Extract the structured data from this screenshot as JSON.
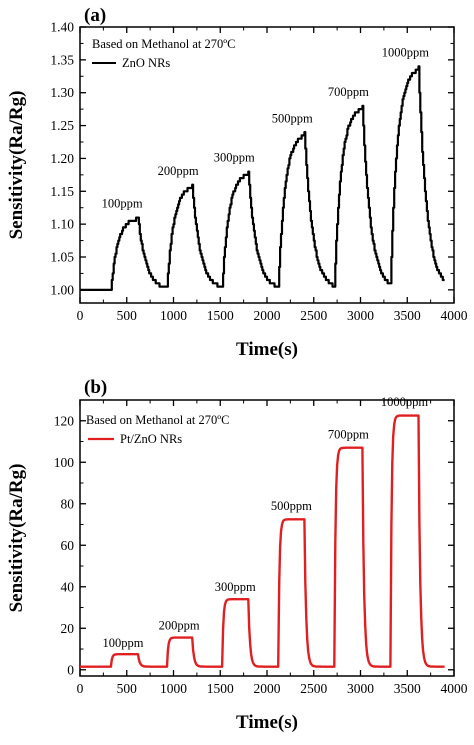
{
  "chart_data": [
    {
      "panel_label": "(a)",
      "type": "line",
      "xlabel": "Time(s)",
      "ylabel": "Sensitivity(Ra/Rg)",
      "xlim": [
        0,
        4000
      ],
      "ylim": [
        0.98,
        1.4
      ],
      "xticks": [
        0,
        500,
        1000,
        1500,
        2000,
        2500,
        3000,
        3500,
        4000
      ],
      "xtick_labels": [
        "0",
        "500",
        "1000",
        "1500",
        "2000",
        "2500",
        "3000",
        "3500",
        "4000"
      ],
      "yticks": [
        1.0,
        1.05,
        1.1,
        1.15,
        1.2,
        1.25,
        1.3,
        1.35,
        1.4
      ],
      "ytick_labels": [
        "1.00",
        "1.05",
        "1.10",
        "1.15",
        "1.20",
        "1.25",
        "1.30",
        "1.35",
        "1.40"
      ],
      "annotation": "Based on Methanol at 270ºC",
      "legend": "top-left",
      "series": [
        {
          "name": "ZnO NRs",
          "color": "#000000",
          "baseline": 1.0,
          "start": 0,
          "end": 3900,
          "pulses": [
            {
              "on": 330,
              "off": 620,
              "peak": 1.11
            },
            {
              "on": 930,
              "off": 1200,
              "peak": 1.16
            },
            {
              "on": 1520,
              "off": 1800,
              "peak": 1.18
            },
            {
              "on": 2120,
              "off": 2400,
              "peak": 1.24
            },
            {
              "on": 2720,
              "off": 3020,
              "peak": 1.28
            },
            {
              "on": 3320,
              "off": 3620,
              "peak": 1.34
            }
          ]
        }
      ],
      "annotations": [
        {
          "text": "100ppm",
          "x": 450,
          "y": 1.125
        },
        {
          "text": "200ppm",
          "x": 1050,
          "y": 1.175
        },
        {
          "text": "300ppm",
          "x": 1650,
          "y": 1.195
        },
        {
          "text": "500ppm",
          "x": 2270,
          "y": 1.255
        },
        {
          "text": "700ppm",
          "x": 2870,
          "y": 1.295
        },
        {
          "text": "1000ppm",
          "x": 3480,
          "y": 1.355
        }
      ]
    },
    {
      "panel_label": "(b)",
      "type": "line",
      "xlabel": "Time(s)",
      "ylabel": "Sensitivity(Ra/Rg)",
      "xlim": [
        0,
        4000
      ],
      "ylim": [
        -3,
        130
      ],
      "xticks": [
        0,
        500,
        1000,
        1500,
        2000,
        2500,
        3000,
        3500,
        4000
      ],
      "xtick_labels": [
        "0",
        "500",
        "1000",
        "1500",
        "2000",
        "2500",
        "3000",
        "3500",
        "4000"
      ],
      "yticks": [
        0,
        20,
        40,
        60,
        80,
        100,
        120
      ],
      "ytick_labels": [
        "0",
        "20",
        "40",
        "60",
        "80",
        "100",
        "120"
      ],
      "annotation": "Based on Methanol at 270ºC",
      "legend": "top-left",
      "series": [
        {
          "name": "Pt/ZnO NRs",
          "color": "#e02020",
          "baseline": 1.5,
          "start": 0,
          "end": 3900,
          "pulses": [
            {
              "on": 330,
              "off": 620,
              "peak": 7.5
            },
            {
              "on": 930,
              "off": 1200,
              "peak": 15.5
            },
            {
              "on": 1520,
              "off": 1800,
              "peak": 34
            },
            {
              "on": 2120,
              "off": 2400,
              "peak": 72.5
            },
            {
              "on": 2720,
              "off": 3020,
              "peak": 107
            },
            {
              "on": 3320,
              "off": 3620,
              "peak": 122.5
            }
          ]
        }
      ],
      "annotations": [
        {
          "text": "100ppm",
          "x": 460,
          "y": 11
        },
        {
          "text": "200ppm",
          "x": 1060,
          "y": 19.5
        },
        {
          "text": "300ppm",
          "x": 1660,
          "y": 38
        },
        {
          "text": "500ppm",
          "x": 2260,
          "y": 77
        },
        {
          "text": "700ppm",
          "x": 2870,
          "y": 111.5
        },
        {
          "text": "1000ppm",
          "x": 3470,
          "y": 127
        }
      ]
    }
  ]
}
